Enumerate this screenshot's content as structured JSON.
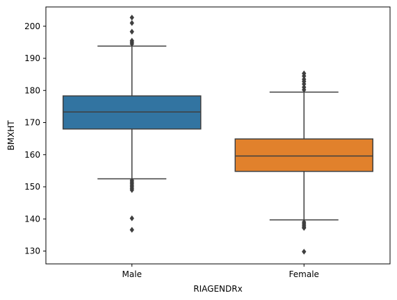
{
  "chart_data": {
    "type": "box",
    "xlabel": "RIAGENDRx",
    "ylabel": "BMXHT",
    "ylim": [
      126,
      206
    ],
    "yticks": [
      130,
      140,
      150,
      160,
      170,
      180,
      190,
      200
    ],
    "grid": false,
    "categories": [
      "Male",
      "Female"
    ],
    "boxes": [
      {
        "category": "Male",
        "color": "#3274a1",
        "whisker_low": 152.5,
        "q1": 168.0,
        "median": 173.3,
        "q3": 178.3,
        "whisker_high": 193.8,
        "outliers": [
          202.7,
          201.0,
          198.3,
          195.5,
          195.0,
          194.5,
          152.0,
          151.5,
          151.0,
          150.5,
          150.0,
          149.5,
          149.0,
          140.2,
          136.6
        ]
      },
      {
        "category": "Female",
        "color": "#e1812c",
        "whisker_low": 139.7,
        "q1": 154.8,
        "median": 159.6,
        "q3": 164.9,
        "whisker_high": 179.5,
        "outliers": [
          185.3,
          184.5,
          183.5,
          182.8,
          182.0,
          181.0,
          180.2,
          139.0,
          138.5,
          138.0,
          137.5,
          137.2,
          129.8
        ]
      }
    ]
  }
}
